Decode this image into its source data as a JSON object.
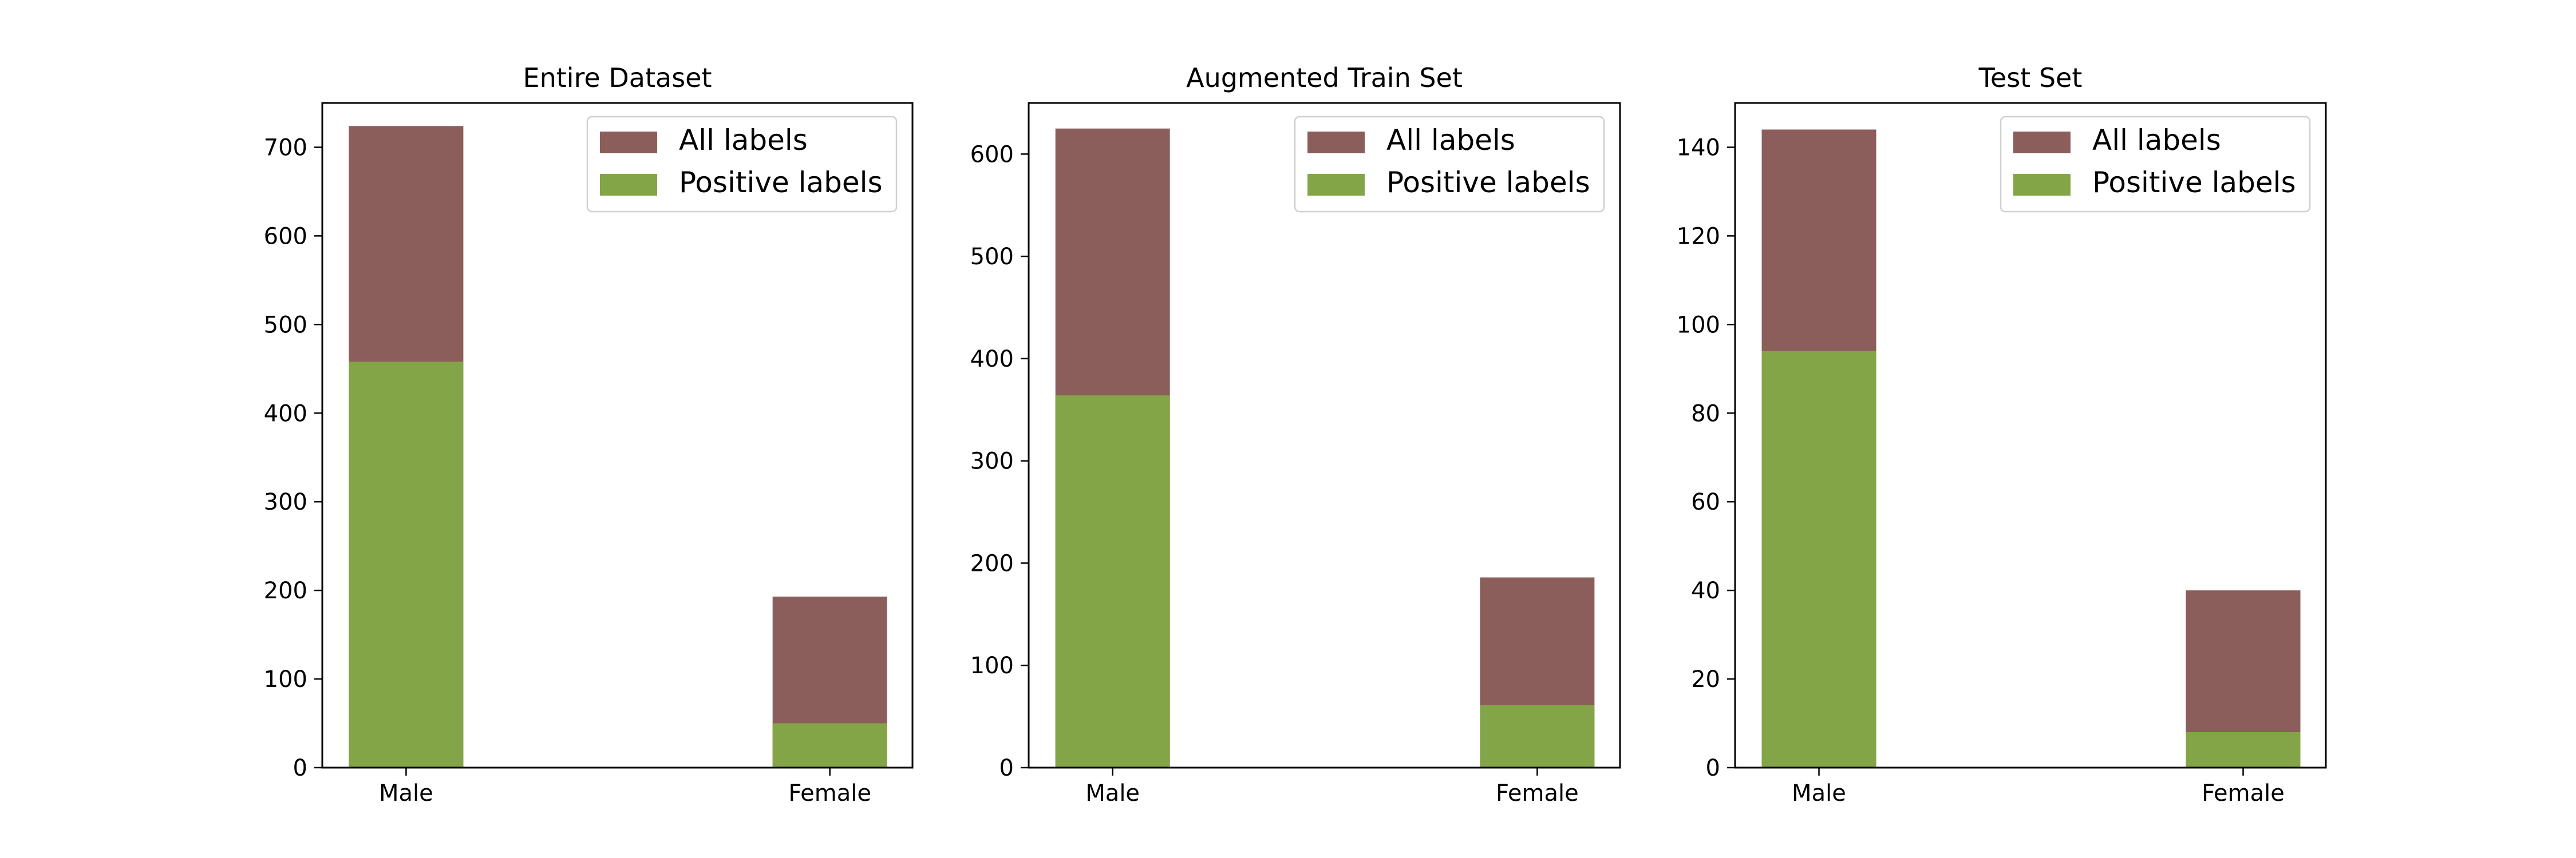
{
  "colors": {
    "all_labels": "#8B5E5C",
    "positive_labels": "#84A547",
    "axis": "#000000",
    "background": "#ffffff"
  },
  "chart_data": [
    {
      "type": "bar",
      "title": "Entire Dataset",
      "categories": [
        "Male",
        "Female"
      ],
      "series": [
        {
          "name": "All labels",
          "values": [
            724,
            193
          ]
        },
        {
          "name": "Positive labels",
          "values": [
            458,
            50
          ]
        }
      ],
      "xlabel": "",
      "ylabel": "",
      "ylim": [
        0,
        750
      ],
      "yticks": [
        0,
        100,
        200,
        300,
        400,
        500,
        600,
        700
      ],
      "legend": "top-right",
      "grid": false
    },
    {
      "type": "bar",
      "title": "Augmented Train Set",
      "categories": [
        "Male",
        "Female"
      ],
      "series": [
        {
          "name": "All labels",
          "values": [
            625,
            186
          ]
        },
        {
          "name": "Positive labels",
          "values": [
            364,
            61
          ]
        }
      ],
      "xlabel": "",
      "ylabel": "",
      "ylim": [
        0,
        650
      ],
      "yticks": [
        0,
        100,
        200,
        300,
        400,
        500,
        600
      ],
      "legend": "top-right",
      "grid": false
    },
    {
      "type": "bar",
      "title": "Test Set",
      "categories": [
        "Male",
        "Female"
      ],
      "series": [
        {
          "name": "All labels",
          "values": [
            144,
            40
          ]
        },
        {
          "name": "Positive labels",
          "values": [
            94,
            8
          ]
        }
      ],
      "xlabel": "",
      "ylabel": "",
      "ylim": [
        0,
        150
      ],
      "yticks": [
        0,
        20,
        40,
        60,
        80,
        100,
        120,
        140
      ],
      "legend": "top-right",
      "grid": false
    }
  ]
}
